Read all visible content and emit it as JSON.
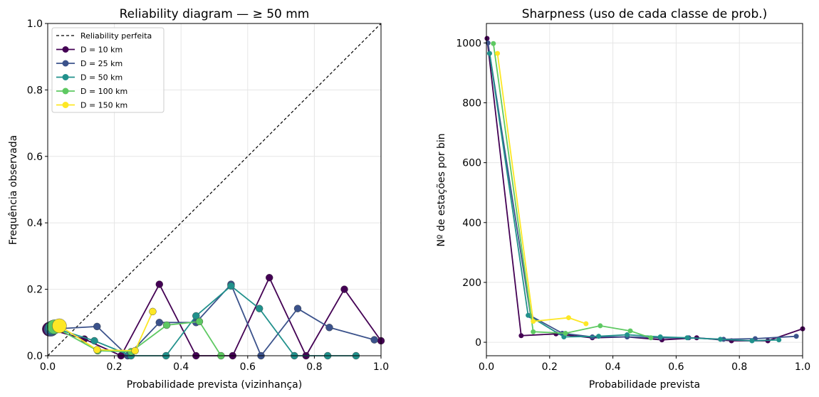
{
  "colors": {
    "D10": "#440154",
    "D25": "#3b528b",
    "D50": "#21918c",
    "D100": "#5ec962",
    "D150": "#fde725",
    "perfect": "#000000",
    "grid": "#e6e6e6"
  },
  "chart_data": [
    {
      "type": "line",
      "title": "Reliability diagram — ≥ 50 mm",
      "xlabel": "Probabilidade prevista (vizinhança)",
      "ylabel": "Frequência observada",
      "xlim": [
        0,
        1
      ],
      "ylim": [
        0,
        1
      ],
      "xticks": [
        "0.0",
        "0.2",
        "0.4",
        "0.6",
        "0.8",
        "1.0"
      ],
      "yticks": [
        "0.0",
        "0.2",
        "0.4",
        "0.6",
        "0.8",
        "1.0"
      ],
      "grid": true,
      "legend": "top-left",
      "reference_label": "Reliability perfeita",
      "series": [
        {
          "name": "D = 10 km",
          "color_key": "D10",
          "points": [
            [
              0.005,
              0.08
            ],
            [
              0.11,
              0.05
            ],
            [
              0.22,
              0.0
            ],
            [
              0.335,
              0.215
            ],
            [
              0.445,
              0.0
            ],
            [
              0.555,
              0.0
            ],
            [
              0.665,
              0.235
            ],
            [
              0.775,
              0.0
            ],
            [
              0.89,
              0.2
            ],
            [
              1.0,
              0.045
            ]
          ]
        },
        {
          "name": "D = 25 km",
          "color_key": "D25",
          "points": [
            [
              0.01,
              0.08
            ],
            [
              0.148,
              0.088
            ],
            [
              0.24,
              0.0
            ],
            [
              0.335,
              0.1
            ],
            [
              0.445,
              0.1
            ],
            [
              0.55,
              0.215
            ],
            [
              0.64,
              0.0
            ],
            [
              0.75,
              0.142
            ],
            [
              0.845,
              0.085
            ],
            [
              0.98,
              0.048
            ]
          ]
        },
        {
          "name": "D = 50 km",
          "color_key": "D50",
          "points": [
            [
              0.015,
              0.085
            ],
            [
              0.14,
              0.045
            ],
            [
              0.25,
              0.0
            ],
            [
              0.355,
              0.0
            ],
            [
              0.445,
              0.12
            ],
            [
              0.55,
              0.21
            ],
            [
              0.635,
              0.142
            ],
            [
              0.74,
              0.0
            ],
            [
              0.84,
              0.0
            ],
            [
              0.925,
              0.0
            ]
          ]
        },
        {
          "name": "D = 100 km",
          "color_key": "D100",
          "points": [
            [
              0.02,
              0.087
            ],
            [
              0.15,
              0.015
            ],
            [
              0.25,
              0.012
            ],
            [
              0.357,
              0.092
            ],
            [
              0.455,
              0.103
            ],
            [
              0.52,
              0.0
            ]
          ]
        },
        {
          "name": "D = 150 km",
          "color_key": "D150",
          "points": [
            [
              0.035,
              0.09
            ],
            [
              0.148,
              0.018
            ],
            [
              0.262,
              0.015
            ],
            [
              0.315,
              0.133
            ]
          ]
        }
      ]
    },
    {
      "type": "line",
      "title": "Sharpness (uso de cada classe de prob.)",
      "xlabel": "Probabilidade prevista",
      "ylabel": "Nº de estações por bin",
      "xlim": [
        0,
        1
      ],
      "ylim": [
        -45,
        1065
      ],
      "xticks": [
        "0.0",
        "0.2",
        "0.4",
        "0.6",
        "0.8",
        "1.0"
      ],
      "yticks": [
        "0",
        "200",
        "400",
        "600",
        "800",
        "1000"
      ],
      "grid": true,
      "series": [
        {
          "name": "D = 10 km",
          "color_key": "D10",
          "points": [
            [
              0.002,
              1015
            ],
            [
              0.11,
              22
            ],
            [
              0.22,
              28
            ],
            [
              0.335,
              15
            ],
            [
              0.445,
              18
            ],
            [
              0.555,
              8
            ],
            [
              0.665,
              15
            ],
            [
              0.775,
              5
            ],
            [
              0.89,
              5
            ],
            [
              1.0,
              45
            ]
          ]
        },
        {
          "name": "D = 25 km",
          "color_key": "D25",
          "points": [
            [
              0.005,
              1000
            ],
            [
              0.14,
              88
            ],
            [
              0.24,
              30
            ],
            [
              0.335,
              18
            ],
            [
              0.445,
              18
            ],
            [
              0.55,
              15
            ],
            [
              0.64,
              15
            ],
            [
              0.75,
              10
            ],
            [
              0.85,
              12
            ],
            [
              0.98,
              20
            ]
          ]
        },
        {
          "name": "D = 50 km",
          "color_key": "D50",
          "points": [
            [
              0.01,
              965
            ],
            [
              0.132,
              90
            ],
            [
              0.245,
              18
            ],
            [
              0.355,
              20
            ],
            [
              0.445,
              25
            ],
            [
              0.55,
              18
            ],
            [
              0.635,
              15
            ],
            [
              0.74,
              10
            ],
            [
              0.84,
              5
            ],
            [
              0.925,
              8
            ]
          ]
        },
        {
          "name": "D = 100 km",
          "color_key": "D100",
          "points": [
            [
              0.022,
              998
            ],
            [
              0.148,
              35
            ],
            [
              0.25,
              30
            ],
            [
              0.36,
              55
            ],
            [
              0.455,
              38
            ],
            [
              0.52,
              15
            ]
          ]
        },
        {
          "name": "D = 150 km",
          "color_key": "D150",
          "points": [
            [
              0.035,
              965
            ],
            [
              0.148,
              70
            ],
            [
              0.26,
              82
            ],
            [
              0.315,
              62
            ]
          ]
        }
      ]
    }
  ]
}
